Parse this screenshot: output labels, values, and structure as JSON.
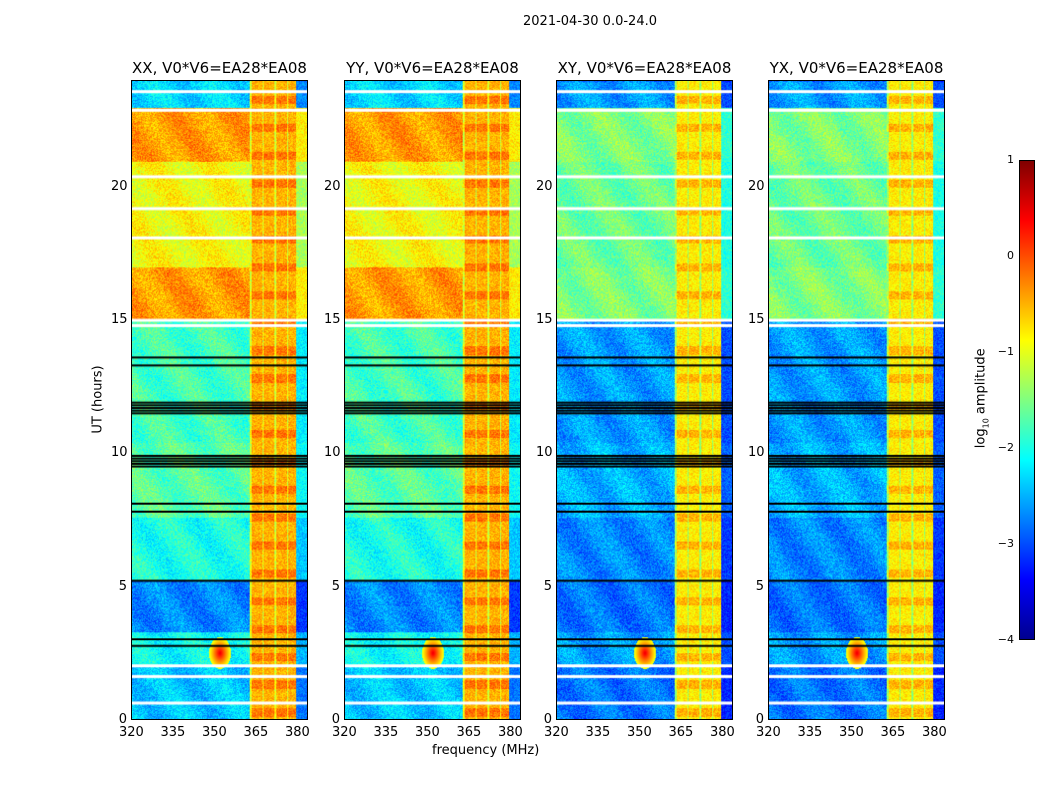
{
  "suptitle": "2021-04-30 0.0-24.0",
  "chart_data": {
    "type": "heatmap",
    "xlabel": "frequency (MHz)",
    "ylabel": "UT (hours)",
    "xlim": [
      320,
      384
    ],
    "ylim": [
      0,
      24
    ],
    "xticks": [
      "320",
      "335",
      "350",
      "365",
      "380"
    ],
    "yticks": [
      "0",
      "5",
      "10",
      "15",
      "20"
    ],
    "panels": [
      {
        "title": "XX, V0*V6=EA28*EA08",
        "kind": "parallel"
      },
      {
        "title": "YY, V0*V6=EA28*EA08",
        "kind": "parallel"
      },
      {
        "title": "XY, V0*V6=EA28*EA08",
        "kind": "cross"
      },
      {
        "title": "YX, V0*V6=EA28*EA08",
        "kind": "cross"
      }
    ],
    "colorbar": {
      "label_prefix": "log",
      "label_sub": "10",
      "label_suffix": " amplitude",
      "range": [
        -4,
        1
      ],
      "ticks": [
        "1",
        "0",
        "−1",
        "−2",
        "−3",
        "−4"
      ],
      "colormap": "jet"
    },
    "time_segments_log10_amplitude": [
      {
        "hours": [
          0,
          2.0
        ],
        "parallel": -2.4,
        "cross": -2.8
      },
      {
        "hours": [
          2.0,
          3.3
        ],
        "parallel": -2.1,
        "cross": -2.6
      },
      {
        "hours": [
          3.3,
          5.2
        ],
        "parallel": -2.7,
        "cross": -2.8
      },
      {
        "hours": [
          5.2,
          7.6
        ],
        "parallel": -2.0,
        "cross": -2.7
      },
      {
        "hours": [
          7.6,
          10.4
        ],
        "parallel": -1.7,
        "cross": -2.5
      },
      {
        "hours": [
          10.4,
          15.0
        ],
        "parallel": -1.8,
        "cross": -2.6
      },
      {
        "hours": [
          15.0,
          17.0
        ],
        "parallel": -0.4,
        "cross": -1.5
      },
      {
        "hours": [
          17.0,
          21.0
        ],
        "parallel": -0.9,
        "cross": -1.6
      },
      {
        "hours": [
          21.0,
          23.0
        ],
        "parallel": -0.4,
        "cross": -1.5
      },
      {
        "hours": [
          23.0,
          24.0
        ],
        "parallel": -2.3,
        "cross": -2.6
      }
    ],
    "rfi_band_mhz": [
      363,
      380
    ],
    "rfi_band_level": {
      "parallel": -0.5,
      "cross": -0.8
    },
    "rfi_spike": {
      "freq_mhz": 352,
      "hour": 2.5,
      "level": 0.5
    },
    "flagged_white_hours": [
      0.6,
      1.6,
      2.0,
      14.8,
      15.0,
      18.1,
      19.2,
      20.4,
      22.9,
      23.6
    ],
    "flagged_black_hours": [
      2.75,
      3.0,
      5.2,
      7.8,
      8.1,
      9.5,
      9.6,
      9.7,
      9.8,
      9.9,
      11.5,
      11.6,
      11.7,
      11.8,
      11.9,
      13.3,
      13.6
    ]
  }
}
